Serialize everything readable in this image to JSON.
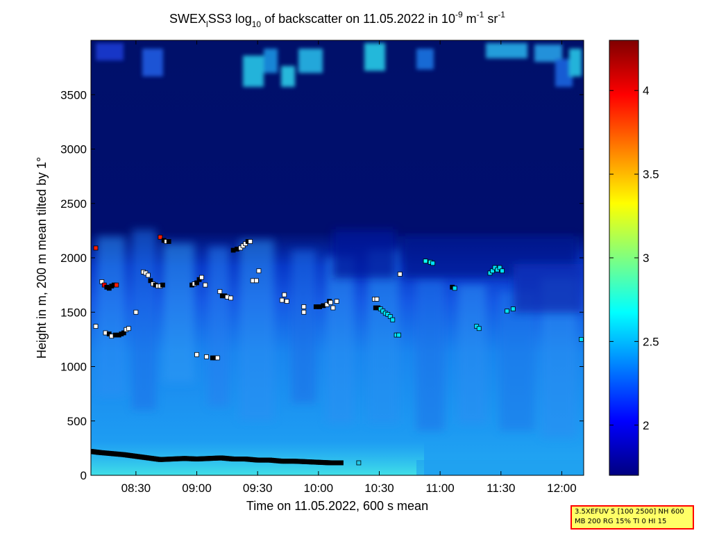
{
  "chart_data": {
    "type": "heatmap",
    "title": {
      "prefix": "SWEX",
      "sub1": "l",
      "mid": "SS3 log",
      "sub2": "10",
      "post": " of backscatter on 11.05.2022 in 10",
      "sup1": "-9",
      "unit1": " m",
      "sup2": "-1",
      "unit2": " sr",
      "sup3": "-1"
    },
    "xlabel": "Time on 11.05.2022, 600 s mean",
    "ylabel": "Height in m, 200 m mean tilted by 1°",
    "x_ticks": [
      "08:30",
      "09:00",
      "09:30",
      "10:00",
      "10:30",
      "11:00",
      "11:30",
      "12:00"
    ],
    "x_tick_hours": [
      8.5,
      9.0,
      9.5,
      10.0,
      10.5,
      11.0,
      11.5,
      12.0
    ],
    "xlim_hours": [
      8.13,
      12.18
    ],
    "y_ticks": [
      "0",
      "500",
      "1000",
      "1500",
      "2000",
      "2500",
      "3000",
      "3500"
    ],
    "y_tick_values": [
      0,
      500,
      1000,
      1500,
      2000,
      2500,
      3000,
      3500
    ],
    "ylim": [
      0,
      4000
    ],
    "colorbar": {
      "ticks": [
        "2",
        "2.5",
        "3",
        "3.5",
        "4"
      ],
      "tick_values": [
        2.0,
        2.5,
        3.0,
        3.5,
        4.0
      ],
      "range": [
        1.7,
        4.3
      ],
      "colormap": "jet"
    },
    "cloud_base_points": [
      [
        8.17,
        2090,
        3.9
      ],
      [
        8.22,
        1780,
        2.5
      ],
      [
        8.24,
        1750,
        4.0
      ],
      [
        8.26,
        1730,
        0
      ],
      [
        8.28,
        1720,
        0
      ],
      [
        8.3,
        1740,
        0
      ],
      [
        8.32,
        1750,
        0
      ],
      [
        8.34,
        1750,
        3.9
      ],
      [
        8.17,
        1370,
        2.5
      ],
      [
        8.25,
        1310,
        2.5
      ],
      [
        8.28,
        1300,
        0
      ],
      [
        8.3,
        1280,
        2.5
      ],
      [
        8.33,
        1290,
        0
      ],
      [
        8.36,
        1290,
        0
      ],
      [
        8.38,
        1300,
        0
      ],
      [
        8.4,
        1310,
        0
      ],
      [
        8.42,
        1340,
        2.5
      ],
      [
        8.44,
        1350,
        2.5
      ],
      [
        8.5,
        1500,
        2.5
      ],
      [
        8.56,
        1870,
        2.5
      ],
      [
        8.58,
        1860,
        2.5
      ],
      [
        8.6,
        1840,
        2.5
      ],
      [
        8.62,
        1790,
        0
      ],
      [
        8.64,
        1760,
        2.5
      ],
      [
        8.66,
        1750,
        0
      ],
      [
        8.68,
        1740,
        2.5
      ],
      [
        8.7,
        1740,
        2.5
      ],
      [
        8.72,
        1750,
        0
      ],
      [
        8.7,
        2190,
        3.9
      ],
      [
        8.73,
        2160,
        0
      ],
      [
        8.75,
        2150,
        2.5
      ],
      [
        8.77,
        2150,
        0
      ],
      [
        8.96,
        1750,
        0
      ],
      [
        8.98,
        1760,
        2.5
      ],
      [
        9.0,
        1770,
        0
      ],
      [
        9.02,
        1800,
        0
      ],
      [
        9.04,
        1820,
        2.5
      ],
      [
        9.07,
        1750,
        2.5
      ],
      [
        9.0,
        1110,
        2.5
      ],
      [
        9.08,
        1090,
        2.5
      ],
      [
        9.13,
        1080,
        0
      ],
      [
        9.15,
        1080,
        0
      ],
      [
        9.17,
        1080,
        2.5
      ],
      [
        9.19,
        1690,
        2.5
      ],
      [
        9.21,
        1650,
        0
      ],
      [
        9.23,
        1650,
        0
      ],
      [
        9.25,
        1640,
        2.5
      ],
      [
        9.28,
        1630,
        2.5
      ],
      [
        9.3,
        2070,
        0
      ],
      [
        9.33,
        2080,
        0
      ],
      [
        9.36,
        2090,
        2.5
      ],
      [
        9.38,
        2110,
        2.5
      ],
      [
        9.4,
        2130,
        2.5
      ],
      [
        9.42,
        2150,
        0
      ],
      [
        9.44,
        2150,
        2.5
      ],
      [
        9.46,
        1790,
        2.5
      ],
      [
        9.49,
        1790,
        2.5
      ],
      [
        9.51,
        1880,
        2.5
      ],
      [
        9.7,
        1610,
        2.5
      ],
      [
        9.72,
        1660,
        2.5
      ],
      [
        9.74,
        1600,
        2.5
      ],
      [
        9.88,
        1550,
        2.5
      ],
      [
        9.88,
        1500,
        2.5
      ],
      [
        9.98,
        1550,
        0
      ],
      [
        10.01,
        1550,
        0
      ],
      [
        10.04,
        1560,
        0
      ],
      [
        10.07,
        1570,
        2.5
      ],
      [
        10.09,
        1600,
        0
      ],
      [
        10.1,
        1590,
        2.5
      ],
      [
        10.12,
        1540,
        2.5
      ],
      [
        10.15,
        1600,
        2.5
      ],
      [
        10.46,
        1620,
        2.5
      ],
      [
        10.48,
        1620,
        2.5
      ],
      [
        10.47,
        1540,
        0
      ],
      [
        10.49,
        1540,
        0
      ],
      [
        10.51,
        1530,
        2.6
      ],
      [
        10.53,
        1510,
        2.6
      ],
      [
        10.55,
        1490,
        2.6
      ],
      [
        10.57,
        1480,
        2.6
      ],
      [
        10.59,
        1460,
        2.6
      ],
      [
        10.61,
        1430,
        2.6
      ],
      [
        10.64,
        1290,
        2.6
      ],
      [
        10.66,
        1290,
        2.6
      ],
      [
        10.67,
        1850,
        2.5
      ],
      [
        10.88,
        1970,
        2.7
      ],
      [
        10.92,
        1960,
        2.7
      ],
      [
        10.94,
        1950,
        2.6
      ],
      [
        11.1,
        1730,
        0
      ],
      [
        11.12,
        1720,
        2.6
      ],
      [
        11.3,
        1370,
        2.6
      ],
      [
        11.32,
        1350,
        2.6
      ],
      [
        11.41,
        1860,
        2.6
      ],
      [
        11.43,
        1880,
        2.6
      ],
      [
        11.45,
        1910,
        2.6
      ],
      [
        11.47,
        1890,
        2.6
      ],
      [
        11.49,
        1910,
        2.6
      ],
      [
        11.51,
        1880,
        2.6
      ],
      [
        11.55,
        1510,
        2.6
      ],
      [
        11.6,
        1530,
        2.6
      ],
      [
        12.16,
        1250,
        2.6
      ]
    ],
    "boundary_layer_top": [
      [
        8.13,
        220
      ],
      [
        8.2,
        210
      ],
      [
        8.3,
        200
      ],
      [
        8.4,
        190
      ],
      [
        8.5,
        175
      ],
      [
        8.6,
        160
      ],
      [
        8.7,
        145
      ],
      [
        8.8,
        150
      ],
      [
        8.9,
        155
      ],
      [
        9.0,
        150
      ],
      [
        9.1,
        155
      ],
      [
        9.2,
        160
      ],
      [
        9.3,
        150
      ],
      [
        9.4,
        150
      ],
      [
        9.5,
        140
      ],
      [
        9.6,
        140
      ],
      [
        9.7,
        130
      ],
      [
        9.8,
        130
      ],
      [
        9.9,
        125
      ],
      [
        10.0,
        120
      ],
      [
        10.1,
        115
      ],
      [
        10.2,
        115
      ]
    ]
  },
  "info_box": {
    "line1": "3.5XEFUV 5 [100 2500] NH 600",
    "line2": "MB 200 RG 15% TI 0 HI 15",
    "border_color": "#ff0000",
    "background_color": "#ffff66"
  }
}
